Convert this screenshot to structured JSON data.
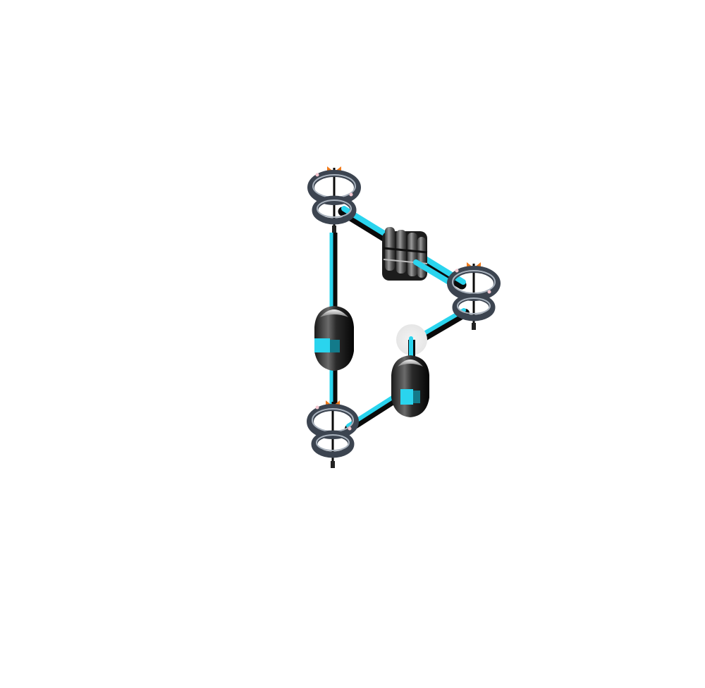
{
  "scene": {
    "background": "#ffffff",
    "colors": {
      "beam_cyan": "#2ad4ee",
      "beam_dark": "#0a0a0a",
      "ring_dark": "#3c4450",
      "ring_light": "#a9b2bd",
      "module_dark": "#151515",
      "module_light": "#c8c8c8",
      "marker_orange": "#f27b1a",
      "glow": "#e9e9e9"
    },
    "nodes": [
      {
        "name": "node-top",
        "icon": "ring-stack-icon"
      },
      {
        "name": "node-right",
        "icon": "ring-stack-icon"
      },
      {
        "name": "node-bottom",
        "icon": "ring-stack-icon"
      }
    ],
    "components": [
      {
        "name": "ridged-module",
        "icon": "ridged-block-icon"
      },
      {
        "name": "capsule-left",
        "icon": "capsule-icon"
      },
      {
        "name": "capsule-right",
        "icon": "capsule-icon"
      },
      {
        "name": "open-port",
        "icon": "glow-port-icon"
      }
    ]
  }
}
